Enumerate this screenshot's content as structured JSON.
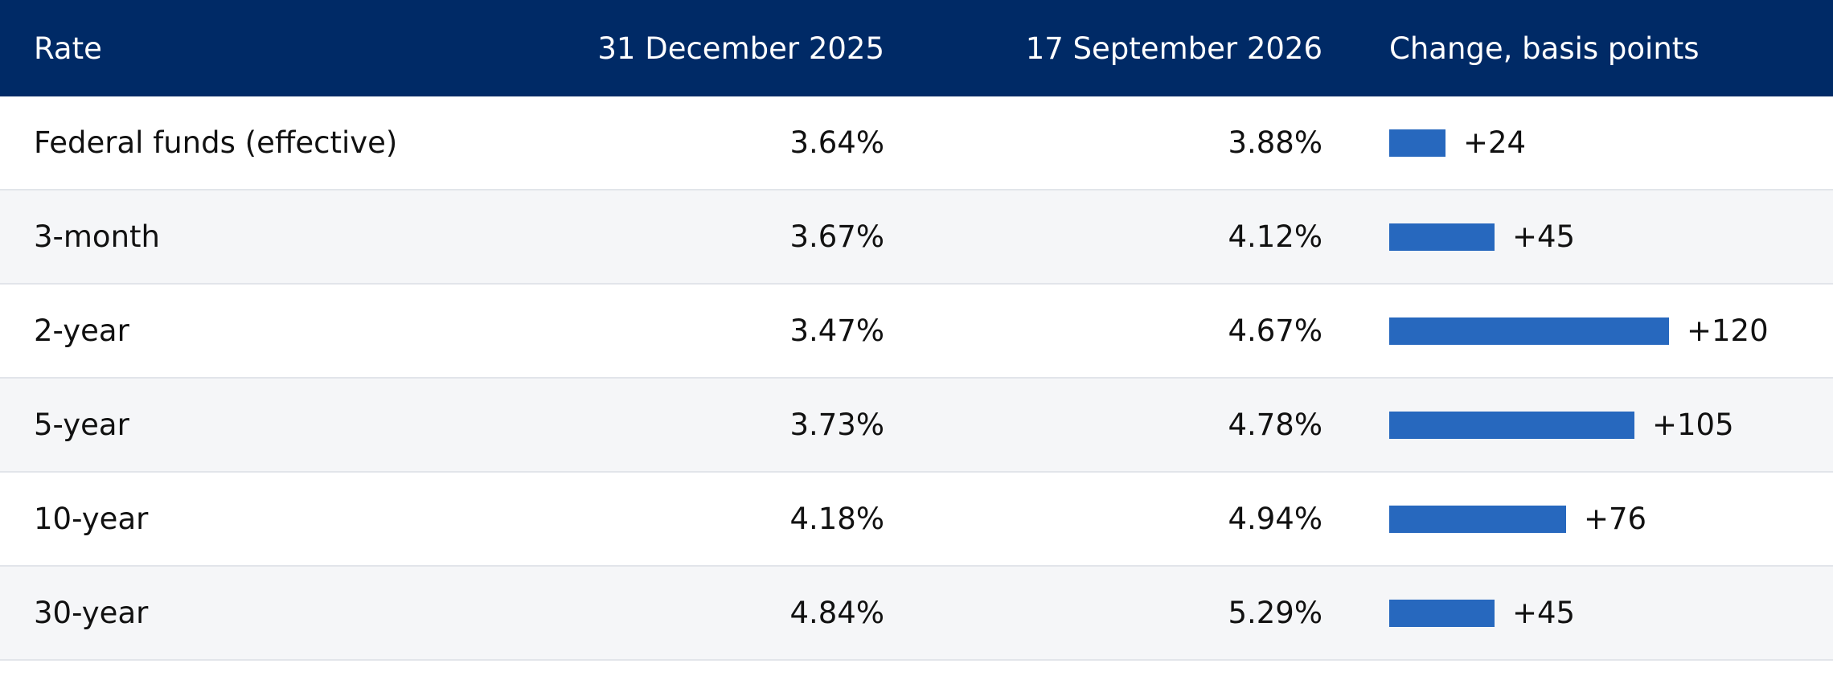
{
  "chart_data": {
    "type": "table",
    "columns": [
      "Rate",
      "31 December 2025",
      "17 September 2026",
      "Change, basis points"
    ],
    "rows": [
      {
        "rate": "Federal funds (effective)",
        "d1": "3.64%",
        "d2": "3.88%",
        "change": 24,
        "change_label": "+24"
      },
      {
        "rate": "3-month",
        "d1": "3.67%",
        "d2": "4.12%",
        "change": 45,
        "change_label": "+45"
      },
      {
        "rate": "2-year",
        "d1": "3.47%",
        "d2": "4.67%",
        "change": 120,
        "change_label": "+120"
      },
      {
        "rate": "5-year",
        "d1": "3.73%",
        "d2": "4.78%",
        "change": 105,
        "change_label": "+105"
      },
      {
        "rate": "10-year",
        "d1": "4.18%",
        "d2": "4.94%",
        "change": 76,
        "change_label": "+76"
      },
      {
        "rate": "30-year",
        "d1": "4.84%",
        "d2": "5.29%",
        "change": 45,
        "change_label": "+45"
      }
    ]
  },
  "colors": {
    "header_bg": "#002a66",
    "bar": "#2768be",
    "alt_row": "#f5f6f8"
  }
}
